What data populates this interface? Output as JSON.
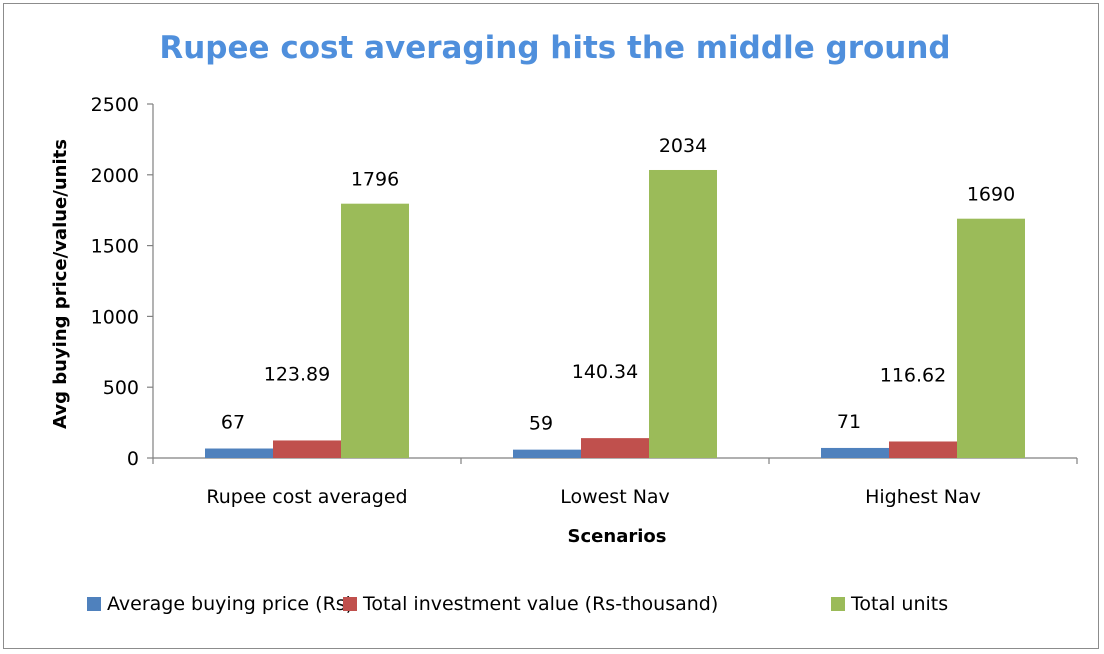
{
  "chart_data": {
    "type": "bar",
    "title": "Rupee cost averaging hits the middle ground",
    "xlabel": "Scenarios",
    "ylabel": "Avg buying price/value/units",
    "ylim": [
      0,
      2500
    ],
    "yticks": [
      0,
      500,
      1000,
      1500,
      2000,
      2500
    ],
    "categories": [
      "Rupee cost averaged",
      "Lowest Nav",
      "Highest Nav"
    ],
    "series": [
      {
        "name": "Average buying price (Rs)",
        "color": "#4f81bd",
        "values": [
          67,
          59,
          71
        ],
        "labels": [
          "67",
          "59",
          "71"
        ]
      },
      {
        "name": "Total investment value (Rs-thousand)",
        "color": "#c0504d",
        "values": [
          123.89,
          140.34,
          116.62
        ],
        "labels": [
          "123.89",
          "140.34",
          "116.62"
        ]
      },
      {
        "name": "Total units",
        "color": "#9bbb59",
        "values": [
          1796,
          2034,
          1690
        ],
        "labels": [
          "1796",
          "2034",
          "1690"
        ]
      }
    ],
    "legend": "bottom",
    "grid": false
  }
}
